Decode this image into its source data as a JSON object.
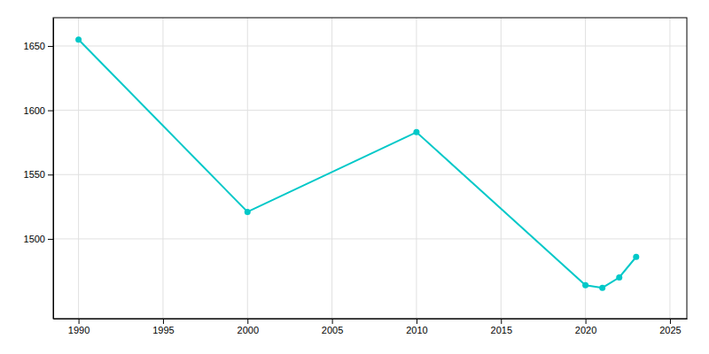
{
  "chart_data": {
    "type": "line",
    "x": [
      1990,
      2000,
      2010,
      2020,
      2021,
      2022,
      2023
    ],
    "values": [
      1655,
      1521,
      1583,
      1464,
      1462,
      1470,
      1486
    ],
    "color": "#00C8C8",
    "marker": "circle",
    "xlim": [
      1988.5,
      2026
    ],
    "ylim": [
      1438,
      1672
    ],
    "xticks": [
      1990,
      1995,
      2000,
      2005,
      2010,
      2015,
      2020,
      2025
    ],
    "yticks": [
      1500,
      1550,
      1600,
      1650
    ],
    "grid": true
  }
}
